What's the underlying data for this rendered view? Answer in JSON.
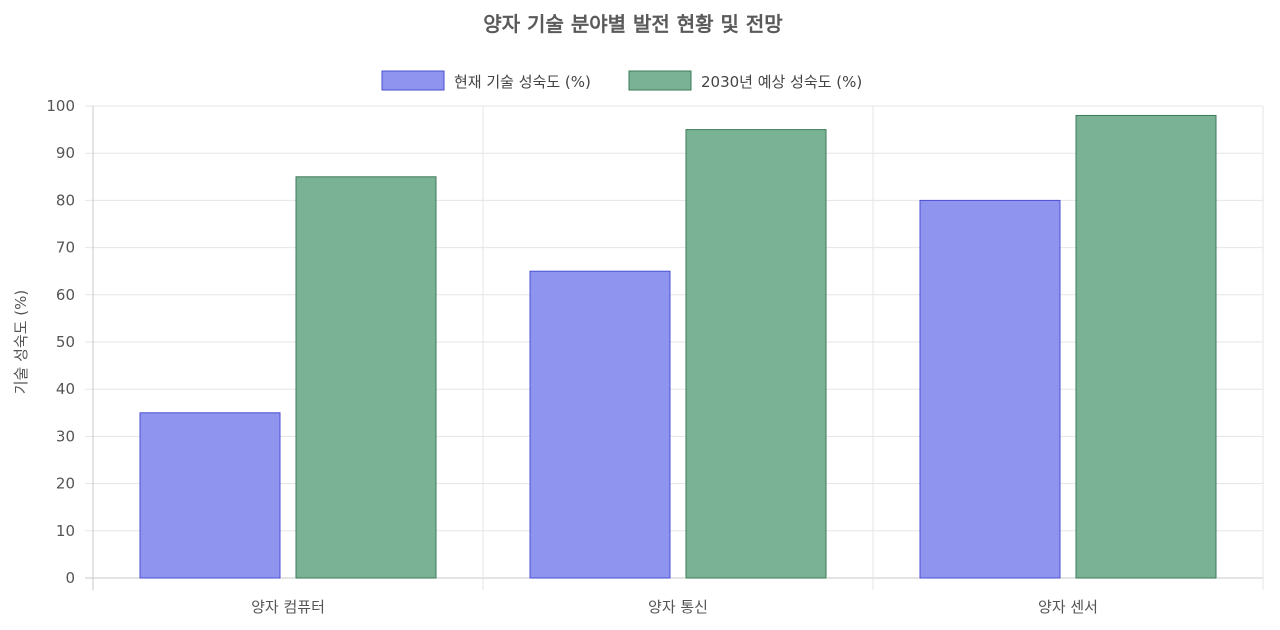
{
  "chart_data": {
    "type": "bar",
    "title": "양자 기술 분야별 발전 현황 및 전망",
    "xlabel": "",
    "ylabel": "기술 성숙도 (%)",
    "ylim": [
      0,
      100
    ],
    "ytick_step": 10,
    "grid": true,
    "legend_position": "top",
    "categories": [
      "양자 컴퓨터",
      "양자 통신",
      "양자 센서"
    ],
    "series": [
      {
        "name": "현재 기술 성숙도 (%)",
        "values": [
          35,
          65,
          80
        ],
        "fill": "#8f94ef",
        "stroke": "#4a4fd0"
      },
      {
        "name": "2030년 예상 성숙도 (%)",
        "values": [
          85,
          95,
          98
        ],
        "fill": "#7ab295",
        "stroke": "#3d7a58"
      }
    ]
  }
}
